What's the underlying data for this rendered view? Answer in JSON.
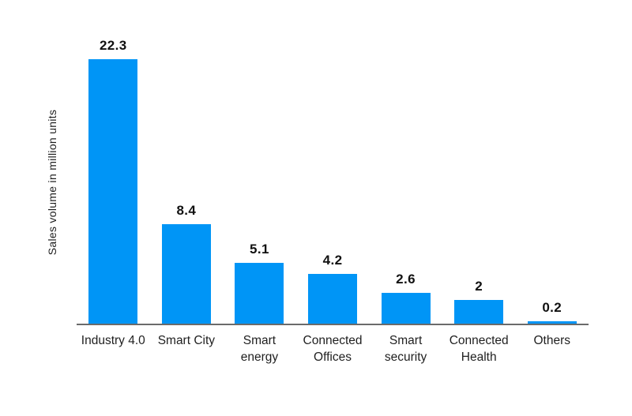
{
  "chart_data": {
    "type": "bar",
    "title": "",
    "xlabel": "",
    "ylabel": "Sales volume in million units",
    "categories": [
      "Industry 4.0",
      "Smart City",
      "Smart energy",
      "Connected Offices",
      "Smart security",
      "Connected Health",
      "Others"
    ],
    "values": [
      22.3,
      8.4,
      5.1,
      4.2,
      2.6,
      2,
      0.2
    ],
    "value_labels": [
      "22.3",
      "8.4",
      "5.1",
      "4.2",
      "2.6",
      "2",
      "0.2"
    ],
    "tick_labels_display": [
      "Industry 4.0",
      "Smart City",
      "Smart\nenergy",
      "Connected\nOffices",
      "Smart\nsecurity",
      "Connected\nHealth",
      "Others"
    ],
    "ylim": [
      0,
      23.5
    ],
    "grid": false,
    "legend": "none",
    "colors": {
      "bar": "#0095f6",
      "axis_line": "#6b6b6b",
      "value_label": "#111111",
      "tick_label": "#1f1f1f",
      "ylabel": "#1d1d1d",
      "background": "#ffffff"
    }
  }
}
